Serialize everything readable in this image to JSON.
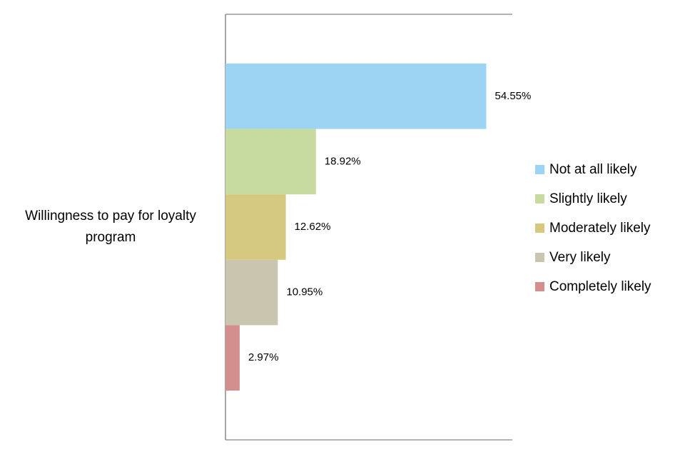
{
  "chart_data": {
    "type": "bar",
    "orientation": "horizontal",
    "categories": [
      "Willingness to pay for loyalty program"
    ],
    "xlim": [
      0,
      60
    ],
    "legend": "right",
    "series": [
      {
        "name": "Not at all likely",
        "color": "#9dd3f3",
        "values": [
          54.55
        ],
        "value_labels": [
          "54.55%"
        ]
      },
      {
        "name": "Slightly likely",
        "color": "#c7dba0",
        "values": [
          18.92
        ],
        "value_labels": [
          "18.92%"
        ]
      },
      {
        "name": "Moderately likely",
        "color": "#d7c87f",
        "values": [
          12.62
        ],
        "value_labels": [
          "12.62%"
        ]
      },
      {
        "name": "Very likely",
        "color": "#c9c5ae",
        "values": [
          10.95
        ],
        "value_labels": [
          "10.95%"
        ]
      },
      {
        "name": "Completely likely",
        "color": "#d48f8c",
        "values": [
          2.97
        ],
        "value_labels": [
          "2.97%"
        ]
      }
    ]
  }
}
